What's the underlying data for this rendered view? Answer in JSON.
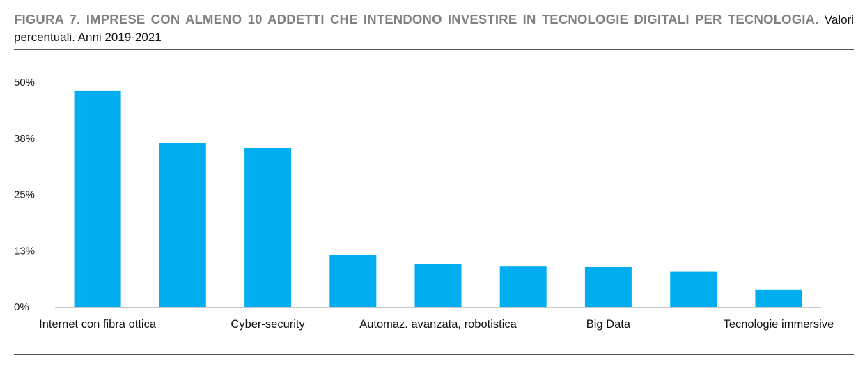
{
  "header": {
    "title_bold": "FIGURA 7. IMPRESE CON ALMENO 10 ADDETTI CHE INTENDONO INVESTIRE IN TECNOLOGIE DIGITALI PER TECNOLOGIA.",
    "subtitle": "Valori percentuali. Anni 2019-2021"
  },
  "chart_data": {
    "type": "bar",
    "title": "FIGURA 7. IMPRESE CON ALMENO 10 ADDETTI CHE INTENDONO INVESTIRE IN TECNOLOGIE DIGITALI PER TECNOLOGIA.",
    "subtitle": "Valori percentuali. Anni 2019-2021",
    "categories": [
      "Internet con fibra ottica",
      "",
      "Cyber-security",
      "",
      "Automaz. avanzata, robotistica",
      "",
      "Big Data",
      "",
      "Tecnologie immersive"
    ],
    "values": [
      48,
      36.5,
      35.3,
      11.6,
      9.5,
      9.1,
      8.9,
      7.8,
      3.9
    ],
    "bar_color": "#00AEEF",
    "ylim": [
      0,
      50
    ],
    "y_ticks": [
      0,
      12.5,
      25,
      37.5,
      50
    ],
    "y_tick_labels": [
      "0%",
      "13%",
      "25%",
      "38%",
      "50%"
    ],
    "xlabel": "",
    "ylabel": "",
    "grid": false,
    "legend": "none"
  }
}
